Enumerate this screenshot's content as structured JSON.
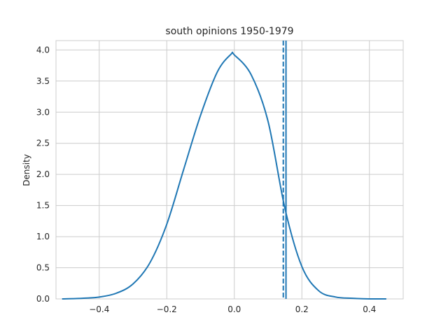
{
  "chart_data": {
    "type": "line",
    "title": "south opinions 1950-1979",
    "xlabel": "",
    "ylabel": "Density",
    "xlim": [
      -0.528,
      0.5
    ],
    "ylim": [
      0,
      4.15
    ],
    "grid": true,
    "xticks": [
      -0.4,
      -0.2,
      0.0,
      0.2,
      0.4
    ],
    "xtick_labels": [
      "−0.4",
      "−0.2",
      "0.0",
      "0.2",
      "0.4"
    ],
    "yticks": [
      0.0,
      0.5,
      1.0,
      1.5,
      2.0,
      2.5,
      3.0,
      3.5,
      4.0
    ],
    "ytick_labels": [
      "0.0",
      "0.5",
      "1.0",
      "1.5",
      "2.0",
      "2.5",
      "3.0",
      "3.5",
      "4.0"
    ],
    "series": [
      {
        "color": "#1f77b4",
        "x": [
          -0.51,
          -0.45,
          -0.4,
          -0.35,
          -0.3,
          -0.25,
          -0.2,
          -0.15,
          -0.1,
          -0.05,
          -0.01,
          0.0,
          0.05,
          0.1,
          0.15,
          0.2,
          0.25,
          0.3,
          0.35,
          0.4,
          0.45
        ],
        "y": [
          0.0,
          0.01,
          0.03,
          0.09,
          0.24,
          0.58,
          1.2,
          2.08,
          2.95,
          3.65,
          3.93,
          3.92,
          3.6,
          2.85,
          1.45,
          0.52,
          0.13,
          0.03,
          0.01,
          0.0,
          0.0
        ]
      }
    ],
    "vlines": [
      {
        "x": 0.145,
        "style": "dashed",
        "color": "#1f77b4"
      },
      {
        "x": 0.153,
        "style": "solid",
        "color": "#1f77b4"
      }
    ],
    "colors": {
      "line": "#1f77b4",
      "grid": "#cccccc",
      "spine": "#cccccc",
      "text": "#262626"
    }
  }
}
